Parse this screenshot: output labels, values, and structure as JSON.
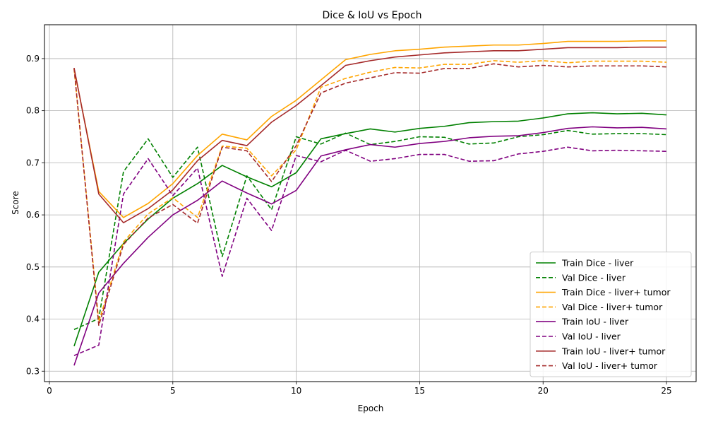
{
  "chart_data": {
    "type": "line",
    "title": "Dice & IoU vs Epoch",
    "xlabel": "Epoch",
    "ylabel": "Score",
    "xlim": [
      -0.2,
      26.2
    ],
    "ylim": [
      0.28,
      0.965
    ],
    "xticks": [
      0,
      5,
      10,
      15,
      20,
      25
    ],
    "yticks": [
      0.3,
      0.4,
      0.5,
      0.6,
      0.7,
      0.8,
      0.9
    ],
    "ytick_labels": [
      "0.3",
      "0.4",
      "0.5",
      "0.6",
      "0.7",
      "0.8",
      "0.9"
    ],
    "grid": true,
    "legend_position": "lower-right",
    "x": [
      1,
      2,
      3,
      4,
      5,
      6,
      7,
      8,
      9,
      10,
      11,
      12,
      13,
      14,
      15,
      16,
      17,
      18,
      19,
      20,
      21,
      22,
      23,
      24,
      25
    ],
    "series": [
      {
        "name": "Train Dice - liver",
        "color": "#008000",
        "dash": "solid",
        "values": [
          0.348,
          0.49,
          0.545,
          0.592,
          0.632,
          0.66,
          0.695,
          0.673,
          0.654,
          0.681,
          0.746,
          0.756,
          0.765,
          0.759,
          0.766,
          0.77,
          0.777,
          0.779,
          0.78,
          0.786,
          0.794,
          0.796,
          0.794,
          0.795,
          0.792
        ]
      },
      {
        "name": "Val Dice - liver",
        "color": "#008000",
        "dash": "dashed",
        "values": [
          0.38,
          0.401,
          0.683,
          0.746,
          0.672,
          0.73,
          0.52,
          0.675,
          0.61,
          0.75,
          0.736,
          0.757,
          0.735,
          0.741,
          0.75,
          0.749,
          0.736,
          0.738,
          0.75,
          0.754,
          0.762,
          0.755,
          0.756,
          0.756,
          0.754
        ]
      },
      {
        "name": "Train Dice - liver+ tumor",
        "color": "#ffa500",
        "dash": "solid",
        "values": [
          0.88,
          0.645,
          0.595,
          0.622,
          0.66,
          0.714,
          0.755,
          0.744,
          0.789,
          0.82,
          0.859,
          0.898,
          0.908,
          0.915,
          0.918,
          0.922,
          0.924,
          0.926,
          0.926,
          0.929,
          0.933,
          0.933,
          0.933,
          0.934,
          0.934
        ]
      },
      {
        "name": "Val Dice - liver+ tumor",
        "color": "#ffa500",
        "dash": "dashed",
        "values": [
          0.88,
          0.395,
          0.548,
          0.602,
          0.633,
          0.595,
          0.732,
          0.728,
          0.675,
          0.725,
          0.845,
          0.862,
          0.874,
          0.883,
          0.882,
          0.889,
          0.889,
          0.896,
          0.893,
          0.896,
          0.892,
          0.895,
          0.895,
          0.895,
          0.893
        ]
      },
      {
        "name": "Train IoU - liver",
        "color": "#800080",
        "dash": "solid",
        "values": [
          0.311,
          0.45,
          0.507,
          0.557,
          0.6,
          0.628,
          0.665,
          0.642,
          0.621,
          0.647,
          0.713,
          0.725,
          0.735,
          0.73,
          0.737,
          0.741,
          0.748,
          0.751,
          0.752,
          0.758,
          0.766,
          0.769,
          0.767,
          0.768,
          0.765
        ]
      },
      {
        "name": "Val IoU - liver",
        "color": "#800080",
        "dash": "dashed",
        "values": [
          0.33,
          0.35,
          0.64,
          0.708,
          0.637,
          0.69,
          0.482,
          0.632,
          0.57,
          0.714,
          0.702,
          0.724,
          0.703,
          0.708,
          0.716,
          0.716,
          0.703,
          0.704,
          0.717,
          0.722,
          0.73,
          0.723,
          0.724,
          0.723,
          0.722
        ]
      },
      {
        "name": "Train IoU - liver+ tumor",
        "color": "#a52a2a",
        "dash": "solid",
        "values": [
          0.882,
          0.64,
          0.585,
          0.612,
          0.648,
          0.704,
          0.743,
          0.733,
          0.778,
          0.81,
          0.848,
          0.887,
          0.896,
          0.903,
          0.907,
          0.911,
          0.913,
          0.915,
          0.915,
          0.918,
          0.921,
          0.921,
          0.921,
          0.922,
          0.922
        ]
      },
      {
        "name": "Val IoU - liver+ tumor",
        "color": "#a52a2a",
        "dash": "dashed",
        "values": [
          0.882,
          0.388,
          0.543,
          0.594,
          0.62,
          0.584,
          0.73,
          0.723,
          0.664,
          0.733,
          0.834,
          0.853,
          0.863,
          0.873,
          0.872,
          0.881,
          0.881,
          0.89,
          0.884,
          0.887,
          0.884,
          0.886,
          0.886,
          0.886,
          0.884
        ]
      }
    ]
  }
}
